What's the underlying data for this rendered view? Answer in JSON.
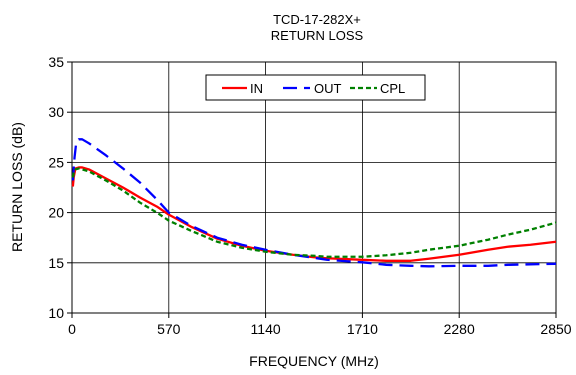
{
  "chart_data": {
    "type": "line",
    "title": "TCD-17-282X+",
    "subtitle": "RETURN LOSS",
    "xlabel": "FREQUENCY (MHz)",
    "ylabel": "RETURN LOSS (dB)",
    "xlim": [
      0,
      2850
    ],
    "ylim": [
      10,
      35
    ],
    "xticks": [
      0,
      570,
      1140,
      1710,
      2280,
      2850
    ],
    "yticks": [
      10,
      15,
      20,
      25,
      30,
      35
    ],
    "grid": true,
    "legend_position": "top-center",
    "series": [
      {
        "name": "IN",
        "color": "#ff0000",
        "style": "solid",
        "x": [
          5,
          10,
          20,
          40,
          60,
          100,
          200,
          300,
          400,
          500,
          570,
          700,
          855,
          1000,
          1140,
          1300,
          1425,
          1500,
          1710,
          1850,
          1995,
          2100,
          2280,
          2450,
          2565,
          2700,
          2850
        ],
        "y": [
          22.6,
          23.5,
          24.4,
          24.5,
          24.5,
          24.3,
          23.4,
          22.5,
          21.5,
          20.6,
          19.8,
          18.6,
          17.4,
          16.7,
          16.2,
          15.8,
          15.55,
          15.45,
          15.3,
          15.2,
          15.2,
          15.4,
          15.8,
          16.3,
          16.6,
          16.8,
          17.1
        ]
      },
      {
        "name": "OUT",
        "color": "#0000ff",
        "style": "dashed",
        "x": [
          5,
          15,
          25,
          40,
          60,
          80,
          100,
          150,
          200,
          300,
          400,
          500,
          570,
          700,
          855,
          1000,
          1140,
          1300,
          1425,
          1500,
          1710,
          1850,
          1995,
          2100,
          2280,
          2450,
          2565,
          2700,
          2850
        ],
        "y": [
          23.2,
          25.5,
          27.0,
          27.3,
          27.3,
          27.1,
          26.9,
          26.3,
          25.7,
          24.4,
          23.0,
          21.3,
          20.0,
          18.7,
          17.5,
          16.8,
          16.3,
          15.8,
          15.5,
          15.3,
          15.05,
          14.8,
          14.7,
          14.65,
          14.7,
          14.7,
          14.8,
          14.85,
          14.9
        ]
      },
      {
        "name": "CPL",
        "color": "#008000",
        "style": "dotted",
        "x": [
          5,
          10,
          20,
          40,
          60,
          100,
          200,
          300,
          400,
          500,
          570,
          700,
          855,
          1000,
          1140,
          1300,
          1425,
          1500,
          1710,
          1850,
          1995,
          2100,
          2280,
          2450,
          2565,
          2700,
          2850
        ],
        "y": [
          23.5,
          24.0,
          24.3,
          24.4,
          24.3,
          24.1,
          23.2,
          22.2,
          21.0,
          20.0,
          19.2,
          18.2,
          17.1,
          16.5,
          16.1,
          15.8,
          15.7,
          15.6,
          15.6,
          15.75,
          16.0,
          16.3,
          16.7,
          17.3,
          17.8,
          18.3,
          19.0
        ]
      }
    ]
  }
}
